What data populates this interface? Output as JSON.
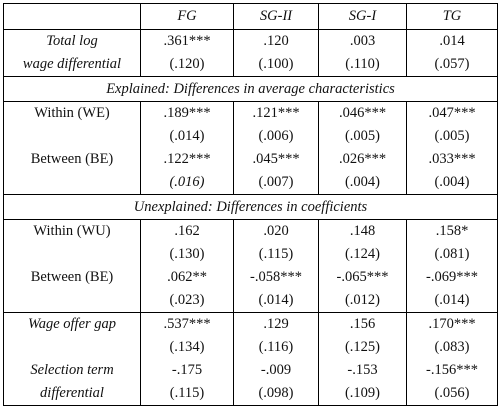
{
  "table": {
    "columns": [
      "FG",
      "SG-II",
      "SG-I",
      "TG"
    ],
    "blocks": [
      {
        "rows": [
          {
            "label": [
              "Total log",
              "wage differential"
            ],
            "estimates": [
              ".361***",
              ".120",
              ".003",
              ".014"
            ],
            "errors": [
              "(.120)",
              "(.100)",
              "(.110)",
              "(.057)"
            ]
          }
        ]
      },
      {
        "section": "Explained: Differences in average characteristics",
        "rows": [
          {
            "label": [
              "Within (WE)"
            ],
            "estimates": [
              ".189***",
              ".121***",
              ".046***",
              ".047***"
            ],
            "errors": [
              "(.014)",
              "(.006)",
              "(.005)",
              "(.005)"
            ]
          },
          {
            "label": [
              "Between (BE)"
            ],
            "estimates": [
              ".122***",
              ".045***",
              ".026***",
              ".033***"
            ],
            "errors": [
              "(.016)",
              "(.007)",
              "(.004)",
              "(.004)"
            ]
          }
        ]
      },
      {
        "section": "Unexplained: Differences in coefficients",
        "rows": [
          {
            "label": [
              "Within (WU)"
            ],
            "estimates": [
              ".162",
              ".020",
              ".148",
              ".158*"
            ],
            "errors": [
              "(.130)",
              "(.115)",
              "(.124)",
              "(.081)"
            ]
          },
          {
            "label": [
              "Between (BE)"
            ],
            "estimates": [
              ".062**",
              "-.058***",
              "-.065***",
              "-.069***"
            ],
            "errors": [
              "(.023)",
              "(.014)",
              "(.012)",
              "(.014)"
            ]
          }
        ]
      },
      {
        "rows": [
          {
            "label": [
              "Wage offer gap"
            ],
            "estimates": [
              ".537***",
              ".129",
              ".156",
              ".170***"
            ],
            "errors": [
              "(.134)",
              "(.116)",
              "(.125)",
              "(.083)"
            ]
          },
          {
            "label": [
              "Selection term",
              "differential"
            ],
            "estimates": [
              "-.175",
              "-.009",
              "-.153",
              "-.156***"
            ],
            "errors": [
              "(.115)",
              "(.098)",
              "(.109)",
              "(.056)"
            ]
          }
        ]
      }
    ]
  }
}
